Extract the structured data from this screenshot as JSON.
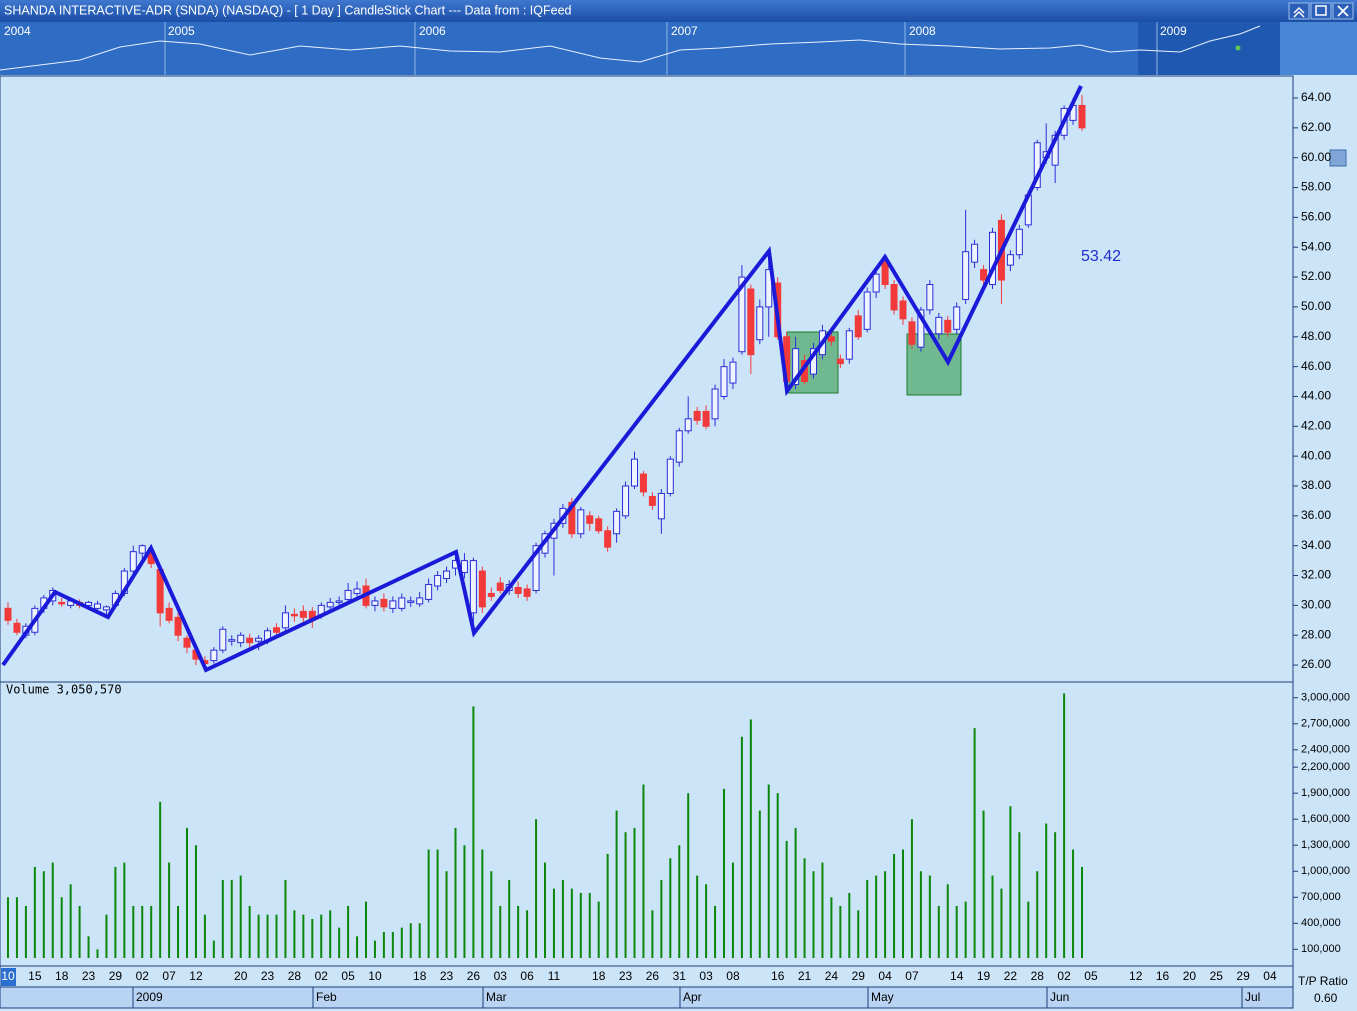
{
  "window": {
    "title": "SHANDA INTERACTIVE-ADR (SNDA) (NASDAQ) -  [ 1 Day ] CandleStick Chart --- Data from : IQFeed"
  },
  "overview": {
    "years": [
      "2004",
      "2005",
      "2006",
      "2007",
      "2008",
      "2009"
    ]
  },
  "time_axis": {
    "months": [
      "2009",
      "Feb",
      "Mar",
      "Apr",
      "May",
      "Jun",
      "Jul"
    ]
  },
  "footer": {
    "label": "T/P Ratio",
    "value": "0.60"
  },
  "chart_data": [
    {
      "type": "candlestick",
      "annotation": "53.42",
      "categories": [
        "10",
        null,
        null,
        "15",
        null,
        null,
        "18",
        null,
        null,
        "23",
        null,
        null,
        "29",
        null,
        null,
        "02",
        null,
        null,
        "07",
        null,
        null,
        "12",
        null,
        null,
        null,
        null,
        "20",
        null,
        null,
        "23",
        null,
        null,
        "28",
        null,
        null,
        "02",
        null,
        null,
        "05",
        null,
        null,
        "10",
        null,
        null,
        null,
        null,
        "18",
        null,
        null,
        "23",
        null,
        null,
        "26",
        null,
        null,
        "03",
        null,
        null,
        "06",
        null,
        null,
        "11",
        null,
        null,
        null,
        null,
        "18",
        null,
        null,
        "23",
        null,
        null,
        "26",
        null,
        null,
        "31",
        null,
        null,
        "03",
        null,
        null,
        "08",
        null,
        null,
        null,
        null,
        "16",
        null,
        null,
        "21",
        null,
        null,
        "24",
        null,
        null,
        "29",
        null,
        null,
        "04",
        null,
        null,
        "07",
        null,
        null,
        null,
        null,
        "14",
        null,
        null,
        "19",
        null,
        null,
        "22",
        null,
        null,
        "28",
        null,
        null,
        "02",
        null,
        null,
        "05",
        null,
        null,
        null,
        null,
        "12",
        null,
        null,
        "16",
        null,
        null,
        "20",
        null,
        null,
        "25",
        null,
        null,
        "29",
        null,
        null,
        "04"
      ],
      "open": [
        29.8,
        28.8,
        28.0,
        28.2,
        29.8,
        30.3,
        30.2,
        30.0,
        30.2,
        30.0,
        29.8,
        29.7,
        30.0,
        30.8,
        32.3,
        33.5,
        33.5,
        32.4,
        29.8,
        29.2,
        27.8,
        27.0,
        26.3,
        26.3,
        27.0,
        27.6,
        27.5,
        27.8,
        27.6,
        27.6,
        28.5,
        28.5,
        29.4,
        29.6,
        29.6,
        29.3,
        29.9,
        30.2,
        30.4,
        30.8,
        31.3,
        30.0,
        30.4,
        29.8,
        29.8,
        30.2,
        30.1,
        30.4,
        31.3,
        31.8,
        32.5,
        32.2,
        29.5,
        32.3,
        30.8,
        31.5,
        31.0,
        31.2,
        31.1,
        31.0,
        33.5,
        34.5,
        35.5,
        36.9,
        34.8,
        36.0,
        35.8,
        35.0,
        34.8,
        36.0,
        38.0,
        38.8,
        37.3,
        35.8,
        37.5,
        39.6,
        41.7,
        43.0,
        43.0,
        42.5,
        44.0,
        44.9,
        47.0,
        51.2,
        47.8,
        50.0,
        51.6,
        48.0,
        44.8,
        46.4,
        45.5,
        46.8,
        48.0,
        46.5,
        46.5,
        49.4,
        48.5,
        51.0,
        53.0,
        51.5,
        50.4,
        49.0,
        47.3,
        49.8,
        48.2,
        49.1,
        48.5,
        50.5,
        53.0,
        52.5,
        51.5,
        55.8,
        52.8,
        53.5,
        55.5,
        58.0,
        60.0,
        59.5,
        61.5,
        62.5,
        63.5,
        null,
        null,
        null,
        null,
        null,
        null,
        null,
        null,
        null,
        null,
        null,
        null,
        null,
        null,
        null,
        null,
        null,
        null,
        null,
        null,
        null
      ],
      "high": [
        30.2,
        29.1,
        28.8,
        30.0,
        30.7,
        31.2,
        30.5,
        30.4,
        30.4,
        30.3,
        30.3,
        30.0,
        31.0,
        32.5,
        34.0,
        34.1,
        33.8,
        32.6,
        30.2,
        29.5,
        28.0,
        27.3,
        26.6,
        27.2,
        28.6,
        28.0,
        28.2,
        28.1,
        28.0,
        28.5,
        28.8,
        30.0,
        29.8,
        30.0,
        29.9,
        30.2,
        30.5,
        30.6,
        31.5,
        31.6,
        31.8,
        30.6,
        30.8,
        30.6,
        30.8,
        30.6,
        30.9,
        31.8,
        32.3,
        32.6,
        33.4,
        33.5,
        33.2,
        32.6,
        31.2,
        31.9,
        31.7,
        31.6,
        31.4,
        34.2,
        35.0,
        35.8,
        36.8,
        37.2,
        36.6,
        36.3,
        36.0,
        35.3,
        36.5,
        38.3,
        40.3,
        39.0,
        37.6,
        37.8,
        40.0,
        41.9,
        44.0,
        43.3,
        43.4,
        44.8,
        46.5,
        46.6,
        52.8,
        51.5,
        50.5,
        53.5,
        52.0,
        48.3,
        48.0,
        46.8,
        47.6,
        48.8,
        48.3,
        46.8,
        48.6,
        49.8,
        51.3,
        52.5,
        53.5,
        51.8,
        50.7,
        49.3,
        50.0,
        51.8,
        49.6,
        49.4,
        50.3,
        56.5,
        54.5,
        52.8,
        55.3,
        56.2,
        53.8,
        55.5,
        57.8,
        61.2,
        62.3,
        61.8,
        63.5,
        64.0,
        64.2,
        null,
        null,
        null,
        null,
        null,
        null,
        null,
        null,
        null,
        null,
        null,
        null,
        null,
        null,
        null,
        null,
        null,
        null,
        null,
        null,
        null
      ],
      "low": [
        28.7,
        28.0,
        27.8,
        28.0,
        29.5,
        30.0,
        29.9,
        29.8,
        29.8,
        29.7,
        29.6,
        29.4,
        29.8,
        30.6,
        32.0,
        33.0,
        32.5,
        28.6,
        28.8,
        27.6,
        26.8,
        26.0,
        25.9,
        26.1,
        26.8,
        27.3,
        27.2,
        27.2,
        27.0,
        27.4,
        28.0,
        28.3,
        28.9,
        28.9,
        28.5,
        29.1,
        29.6,
        29.9,
        30.2,
        30.6,
        29.8,
        29.6,
        29.6,
        29.5,
        29.6,
        29.9,
        29.9,
        30.2,
        31.0,
        31.5,
        32.0,
        31.8,
        28.8,
        29.5,
        30.3,
        30.8,
        30.7,
        30.5,
        30.3,
        30.8,
        33.2,
        32.0,
        35.2,
        34.5,
        34.5,
        35.0,
        34.8,
        33.6,
        34.2,
        35.8,
        37.8,
        37.3,
        36.4,
        34.8,
        37.3,
        39.3,
        41.5,
        42.1,
        41.8,
        42.0,
        43.8,
        44.5,
        46.8,
        45.5,
        47.5,
        48.0,
        47.8,
        44.6,
        44.5,
        44.8,
        45.2,
        46.5,
        47.4,
        45.9,
        46.2,
        47.8,
        48.3,
        50.6,
        51.2,
        49.5,
        48.8,
        47.2,
        47.0,
        49.5,
        47.8,
        48.0,
        48.2,
        50.2,
        52.6,
        51.5,
        51.2,
        50.2,
        52.4,
        53.2,
        55.3,
        57.8,
        59.6,
        58.3,
        61.2,
        62.2,
        61.8,
        null,
        null,
        null,
        null,
        null,
        null,
        null,
        null,
        null,
        null,
        null,
        null,
        null,
        null,
        null,
        null,
        null,
        null,
        null,
        null,
        null
      ],
      "close": [
        29.0,
        28.2,
        28.6,
        29.8,
        30.5,
        31.0,
        30.1,
        30.3,
        30.0,
        30.2,
        30.1,
        29.9,
        30.8,
        32.3,
        33.6,
        34.0,
        32.8,
        29.5,
        29.0,
        28.0,
        27.2,
        26.4,
        26.1,
        27.0,
        28.4,
        27.7,
        28.0,
        27.5,
        27.8,
        28.3,
        28.2,
        29.5,
        29.3,
        29.2,
        29.0,
        30.0,
        30.2,
        30.3,
        31.0,
        31.1,
        30.0,
        30.3,
        29.9,
        30.3,
        30.5,
        30.3,
        30.5,
        31.4,
        32.0,
        32.3,
        33.0,
        33.0,
        33.0,
        29.9,
        30.6,
        31.0,
        31.4,
        30.8,
        30.6,
        34.0,
        34.8,
        35.5,
        36.5,
        34.8,
        36.4,
        35.5,
        35.0,
        33.9,
        36.3,
        38.0,
        39.8,
        37.6,
        36.7,
        37.5,
        39.8,
        41.7,
        42.5,
        42.4,
        42.0,
        44.5,
        46.0,
        46.3,
        52.0,
        46.8,
        50.0,
        52.5,
        48.0,
        45.0,
        47.2,
        45.0,
        47.2,
        48.4,
        47.7,
        46.2,
        48.4,
        48.0,
        51.0,
        52.2,
        51.5,
        49.8,
        49.2,
        47.5,
        49.8,
        51.5,
        49.3,
        48.3,
        50.0,
        53.7,
        54.2,
        51.8,
        55.0,
        51.8,
        53.5,
        55.2,
        57.5,
        61.0,
        60.4,
        61.5,
        63.3,
        63.5,
        62.0,
        null,
        null,
        null,
        null,
        null,
        null,
        null,
        null,
        null,
        null,
        null,
        null,
        null,
        null,
        null,
        null,
        null,
        null,
        null,
        null,
        null
      ],
      "up_color": "#2c2cd8",
      "down_color": "#f23a3a",
      "ylim": [
        25,
        65.34
      ],
      "yticks": [
        {
          "value": 26,
          "label": "26.00"
        },
        {
          "value": 28,
          "label": "28.00"
        },
        {
          "value": 30,
          "label": "30.00"
        },
        {
          "value": 32,
          "label": "32.00"
        },
        {
          "value": 34,
          "label": "34.00"
        },
        {
          "value": 36,
          "label": "36.00"
        },
        {
          "value": 38,
          "label": "38.00"
        },
        {
          "value": 40,
          "label": "40.00"
        },
        {
          "value": 42,
          "label": "42.00"
        },
        {
          "value": 44,
          "label": "44.00"
        },
        {
          "value": 46,
          "label": "46.00"
        },
        {
          "value": 48,
          "label": "48.00"
        },
        {
          "value": 50,
          "label": "50.00"
        },
        {
          "value": 52,
          "label": "52.00"
        },
        {
          "value": 54,
          "label": "54.00"
        },
        {
          "value": 56,
          "label": "56.00"
        },
        {
          "value": 58,
          "label": "58.00"
        },
        {
          "value": 60,
          "label": "60.00"
        },
        {
          "value": 62,
          "label": "62.00"
        },
        {
          "value": 64,
          "label": "64.00"
        }
      ]
    },
    {
      "type": "bar",
      "title": "Volume 3,050,570",
      "values": [
        700000,
        700000,
        600000,
        1050000,
        1000000,
        1100000,
        700000,
        850000,
        600000,
        250000,
        100000,
        500000,
        1050000,
        1100000,
        600000,
        600000,
        600000,
        1800000,
        1100000,
        600000,
        1500000,
        1300000,
        500000,
        200000,
        900000,
        900000,
        950000,
        600000,
        500000,
        500000,
        500000,
        900000,
        550000,
        500000,
        450000,
        500000,
        550000,
        350000,
        600000,
        250000,
        650000,
        200000,
        300000,
        300000,
        350000,
        400000,
        400000,
        1250000,
        1250000,
        1000000,
        1500000,
        1300000,
        2900000,
        1250000,
        1000000,
        600000,
        900000,
        600000,
        550000,
        1600000,
        1100000,
        800000,
        900000,
        800000,
        750000,
        750000,
        650000,
        1200000,
        1700000,
        1450000,
        1500000,
        2000000,
        550000,
        900000,
        1150000,
        1300000,
        1900000,
        950000,
        850000,
        600000,
        1950000,
        1100000,
        2550000,
        2750000,
        1700000,
        2000000,
        1900000,
        1350000,
        1500000,
        1150000,
        1000000,
        1100000,
        700000,
        600000,
        750000,
        550000,
        900000,
        950000,
        1000000,
        1200000,
        1250000,
        1600000,
        1000000,
        950000,
        600000,
        850000,
        600000,
        650000,
        2650000,
        1700000,
        950000,
        800000,
        1750000,
        1450000,
        650000,
        1000000,
        1550000,
        1450000,
        3050000,
        1250000,
        1050000,
        null,
        null,
        null,
        null,
        null,
        null,
        null,
        null,
        null,
        null,
        null,
        null,
        null,
        null,
        null,
        null,
        null,
        null,
        null,
        null,
        null
      ],
      "color": "#0b870b",
      "ylim": [
        0,
        3170000
      ],
      "yticks": [
        {
          "value": 100000,
          "label": "100,000"
        },
        {
          "value": 400000,
          "label": "400,000"
        },
        {
          "value": 700000,
          "label": "700,000"
        },
        {
          "value": 1000000,
          "label": "1,000,000"
        },
        {
          "value": 1300000,
          "label": "1,300,000"
        },
        {
          "value": 1600000,
          "label": "1,600,000"
        },
        {
          "value": 1900000,
          "label": "1,900,000"
        },
        {
          "value": 2200000,
          "label": "2,200,000"
        },
        {
          "value": 2400000,
          "label": "2,400,000"
        },
        {
          "value": 2700000,
          "label": "2,700,000"
        },
        {
          "value": 3000000,
          "label": "3,000,000"
        }
      ]
    }
  ]
}
